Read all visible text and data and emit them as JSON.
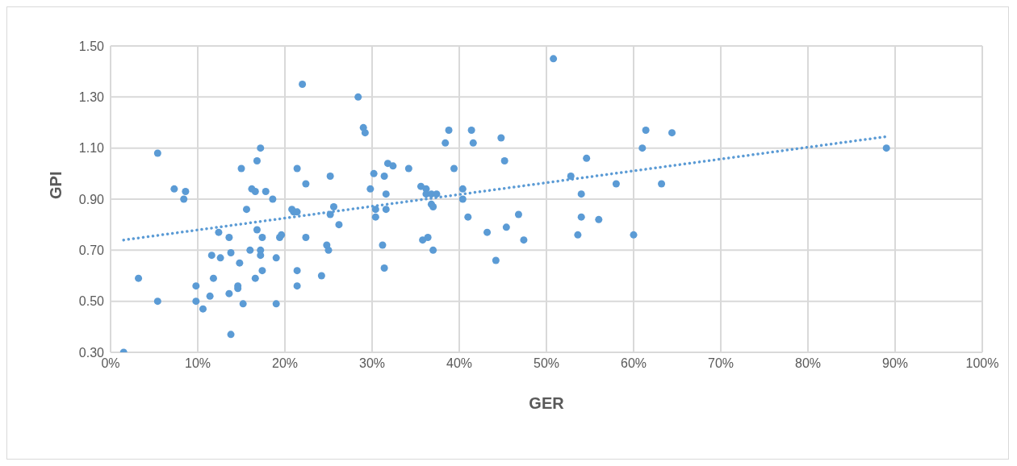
{
  "chart_data": {
    "type": "scatter",
    "xlabel": "GER",
    "ylabel": "GPI",
    "xlim": [
      0,
      100
    ],
    "xticks": [
      {
        "value": 0,
        "label": "0%"
      },
      {
        "value": 10,
        "label": "10%"
      },
      {
        "value": 20,
        "label": "20%"
      },
      {
        "value": 30,
        "label": "30%"
      },
      {
        "value": 40,
        "label": "40%"
      },
      {
        "value": 50,
        "label": "50%"
      },
      {
        "value": 60,
        "label": "60%"
      },
      {
        "value": 70,
        "label": "70%"
      },
      {
        "value": 80,
        "label": "80%"
      },
      {
        "value": 90,
        "label": "90%"
      },
      {
        "value": 100,
        "label": "100%"
      }
    ],
    "ylim": [
      0.3,
      1.5
    ],
    "yticks": [
      {
        "value": 0.3,
        "label": "0.30"
      },
      {
        "value": 0.5,
        "label": "0.50"
      },
      {
        "value": 0.7,
        "label": "0.70"
      },
      {
        "value": 0.9,
        "label": "0.90"
      },
      {
        "value": 1.1,
        "label": "1.10"
      },
      {
        "value": 1.3,
        "label": "1.30"
      },
      {
        "value": 1.5,
        "label": "1.50"
      }
    ],
    "grid": true,
    "legend": false,
    "series": [
      {
        "type": "scatter",
        "color": "#5b9bd5",
        "marker": "circle",
        "x": [
          1.5,
          3.2,
          5.4,
          5.4,
          7.3,
          8.6,
          8.4,
          9.8,
          9.8,
          10.6,
          11.4,
          11.6,
          11.8,
          12.4,
          12.6,
          13.6,
          13.8,
          13.6,
          13.8,
          14.6,
          14.6,
          14.8,
          15.0,
          15.2,
          15.6,
          16.0,
          16.2,
          16.6,
          16.6,
          16.8,
          16.8,
          17.2,
          17.2,
          17.2,
          17.4,
          17.4,
          17.8,
          18.6,
          19.0,
          19.0,
          19.4,
          19.6,
          20.8,
          21.0,
          21.4,
          21.4,
          21.4,
          21.4,
          22.0,
          22.4,
          22.4,
          24.2,
          24.8,
          25.0,
          25.2,
          25.2,
          25.6,
          26.2,
          28.4,
          29.0,
          29.2,
          29.8,
          30.2,
          30.4,
          30.4,
          31.2,
          31.4,
          31.4,
          31.6,
          31.6,
          31.8,
          32.4,
          34.2,
          35.6,
          35.8,
          36.2,
          36.2,
          36.4,
          36.8,
          36.8,
          37.0,
          37.0,
          37.4,
          38.4,
          38.8,
          39.4,
          40.4,
          40.4,
          41.0,
          41.4,
          41.6,
          43.2,
          44.2,
          44.8,
          45.2,
          45.4,
          46.8,
          47.4,
          50.8,
          52.8,
          53.6,
          54.0,
          54.0,
          54.6,
          56.0,
          58.0,
          60.0,
          61.0,
          61.4,
          63.2,
          64.4,
          89.0
        ],
        "values": [
          0.3,
          0.59,
          1.08,
          0.5,
          0.94,
          0.93,
          0.9,
          0.56,
          0.5,
          0.47,
          0.52,
          0.68,
          0.59,
          0.77,
          0.67,
          0.75,
          0.69,
          0.53,
          0.37,
          0.56,
          0.55,
          0.65,
          1.02,
          0.49,
          0.86,
          0.7,
          0.94,
          0.93,
          0.59,
          1.05,
          0.78,
          1.1,
          0.7,
          0.68,
          0.75,
          0.62,
          0.93,
          0.9,
          0.67,
          0.49,
          0.75,
          0.76,
          0.86,
          0.85,
          1.02,
          0.62,
          0.56,
          0.85,
          1.35,
          0.96,
          0.75,
          0.6,
          0.72,
          0.7,
          0.84,
          0.99,
          0.87,
          0.8,
          1.3,
          1.18,
          1.16,
          0.94,
          1.0,
          0.86,
          0.83,
          0.72,
          0.99,
          0.63,
          0.92,
          0.86,
          1.04,
          1.03,
          1.02,
          0.95,
          0.74,
          0.94,
          0.92,
          0.75,
          0.92,
          0.88,
          0.87,
          0.7,
          0.92,
          1.12,
          1.17,
          1.02,
          0.94,
          0.9,
          0.83,
          1.17,
          1.12,
          0.77,
          0.66,
          1.14,
          1.05,
          0.79,
          0.84,
          0.74,
          1.45,
          0.99,
          0.76,
          0.92,
          0.83,
          1.06,
          0.82,
          0.96,
          0.76,
          1.1,
          1.17,
          0.96,
          1.16,
          1.1
        ]
      },
      {
        "type": "line",
        "color": "#5b9bd5",
        "marker": "none",
        "line_style": "dotted",
        "x": [
          1.5,
          89.0
        ],
        "values": [
          0.74,
          1.145
        ]
      }
    ]
  }
}
